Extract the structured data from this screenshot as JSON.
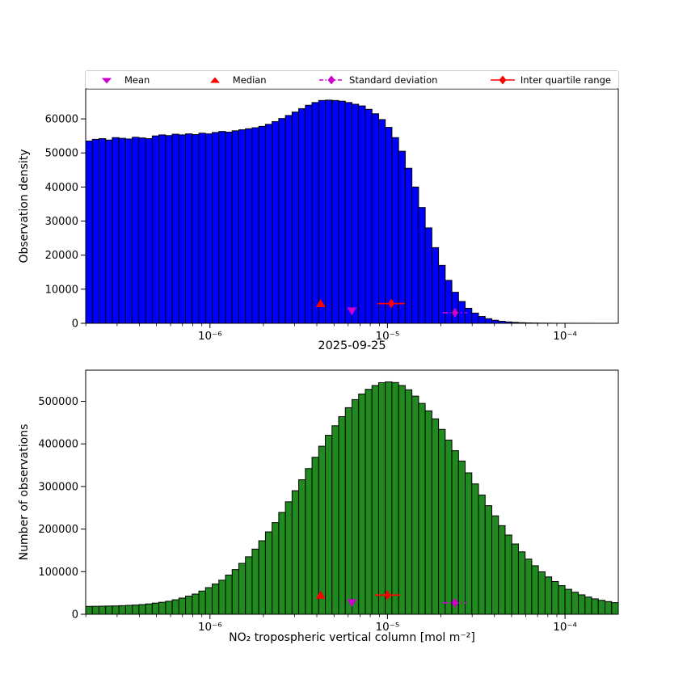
{
  "title": "2025-09-25",
  "xlabel": "NO₂ tropospheric vertical column [mol m⁻²]",
  "colors": {
    "magenta": "#cc00cc",
    "red": "#ff0000",
    "blue": "#0000ff",
    "green": "#1f8b1f",
    "bar_edge": "#000000",
    "legend_border": "#cccccc"
  },
  "legend": {
    "items": [
      {
        "label": "Mean",
        "marker": "triangle-down",
        "color": "magenta"
      },
      {
        "label": "Median",
        "marker": "triangle-up",
        "color": "red"
      },
      {
        "label": "Standard deviation",
        "marker": "diamond-dashdot-line",
        "color": "magenta"
      },
      {
        "label": "Inter quartile range",
        "marker": "diamond-solid-line",
        "color": "red"
      }
    ]
  },
  "chart_data": [
    {
      "type": "bar",
      "subtype": "histogram-log-x",
      "title": "",
      "ylabel": "Observation density",
      "bar_color": "#0000ff",
      "x_log10_min": -6.7,
      "x_log10_max": -3.7,
      "axis_log10_min": -6.7,
      "axis_log10_max": -3.7,
      "ylim": [
        0,
        68800
      ],
      "yticks": [
        0,
        10000,
        20000,
        30000,
        40000,
        50000,
        60000
      ],
      "xticks": [
        {
          "log10": -6,
          "label": "10⁻⁶"
        },
        {
          "log10": -5,
          "label": "10⁻⁵"
        },
        {
          "log10": -4,
          "label": "10⁻⁴"
        }
      ],
      "values": [
        53500,
        54000,
        54200,
        53800,
        54500,
        54300,
        54100,
        54600,
        54400,
        54200,
        55000,
        55300,
        55100,
        55500,
        55300,
        55600,
        55400,
        55800,
        55600,
        56000,
        56300,
        56100,
        56500,
        56800,
        57100,
        57400,
        57800,
        58400,
        59200,
        60100,
        61000,
        62000,
        63000,
        64000,
        64800,
        65400,
        65500,
        65400,
        65200,
        64800,
        64300,
        63800,
        62800,
        61500,
        59800,
        57500,
        54500,
        50500,
        45500,
        40000,
        34000,
        28000,
        22200,
        17000,
        12600,
        9100,
        6400,
        4400,
        3000,
        2000,
        1350,
        900,
        600,
        400,
        270,
        180,
        120,
        85,
        60,
        42,
        30,
        22,
        16,
        12,
        9,
        7,
        5,
        4,
        3,
        2
      ],
      "markers": [
        {
          "name": "median",
          "shape": "triangle-up",
          "color": "#ff0000",
          "x": 4.2e-06,
          "y": 5800
        },
        {
          "name": "mean",
          "shape": "triangle-down",
          "color": "#cc00cc",
          "x": 6.3e-06,
          "y": 3600
        },
        {
          "name": "inter-quartile-range",
          "shape": "diamond",
          "color": "#ff0000",
          "x": 1.05e-05,
          "y": 5800,
          "x_from": 8.8e-06,
          "x_to": 1.25e-05,
          "linestyle": "solid"
        },
        {
          "name": "standard-deviation",
          "shape": "diamond",
          "color": "#cc00cc",
          "x": 2.4e-05,
          "y": 3100,
          "x_from": 2.05e-05,
          "x_to": 2.8e-05,
          "linestyle": "dashdot"
        }
      ]
    },
    {
      "type": "bar",
      "subtype": "histogram-log-x",
      "title": "",
      "ylabel": "Number of observations",
      "bar_color": "#1f8b1f",
      "x_log10_min": -6.7,
      "x_log10_max": -3.7,
      "axis_log10_min": -6.7,
      "axis_log10_max": -3.7,
      "ylim": [
        0,
        573000
      ],
      "yticks": [
        0,
        100000,
        200000,
        300000,
        400000,
        500000
      ],
      "xticks": [
        {
          "log10": -6,
          "label": "10⁻⁶"
        },
        {
          "log10": -5,
          "label": "10⁻⁵"
        },
        {
          "log10": -4,
          "label": "10⁻⁴"
        }
      ],
      "values": [
        18500,
        18700,
        19000,
        19300,
        19600,
        20200,
        20900,
        21700,
        22700,
        24300,
        26200,
        28200,
        30500,
        34000,
        38000,
        42500,
        47400,
        54500,
        62500,
        71000,
        80000,
        92000,
        105000,
        119500,
        134900,
        153000,
        172500,
        193500,
        215100,
        239000,
        264000,
        290000,
        315700,
        342000,
        368500,
        394500,
        420100,
        442500,
        464000,
        485000,
        504000,
        517000,
        528000,
        537000,
        543700,
        545500,
        544000,
        537000,
        526900,
        512000,
        495000,
        477500,
        458800,
        434000,
        409000,
        384000,
        359700,
        332000,
        306000,
        280000,
        254900,
        231000,
        208000,
        186000,
        165000,
        146500,
        129500,
        114000,
        99600,
        87600,
        76800,
        67200,
        58600,
        51700,
        45600,
        40400,
        36100,
        32700,
        29800,
        27200
      ],
      "markers": [
        {
          "name": "median",
          "shape": "triangle-up",
          "color": "#ff0000",
          "x": 4.2e-06,
          "y": 45000
        },
        {
          "name": "mean",
          "shape": "triangle-down",
          "color": "#cc00cc",
          "x": 6.3e-06,
          "y": 27000
        },
        {
          "name": "inter-quartile-range",
          "shape": "diamond",
          "color": "#ff0000",
          "x": 1e-05,
          "y": 45000,
          "x_from": 8.5e-06,
          "x_to": 1.18e-05,
          "linestyle": "solid"
        },
        {
          "name": "standard-deviation",
          "shape": "diamond",
          "color": "#cc00cc",
          "x": 2.4e-05,
          "y": 27000,
          "x_from": 2.05e-05,
          "x_to": 2.8e-05,
          "linestyle": "dashdot"
        }
      ]
    }
  ]
}
